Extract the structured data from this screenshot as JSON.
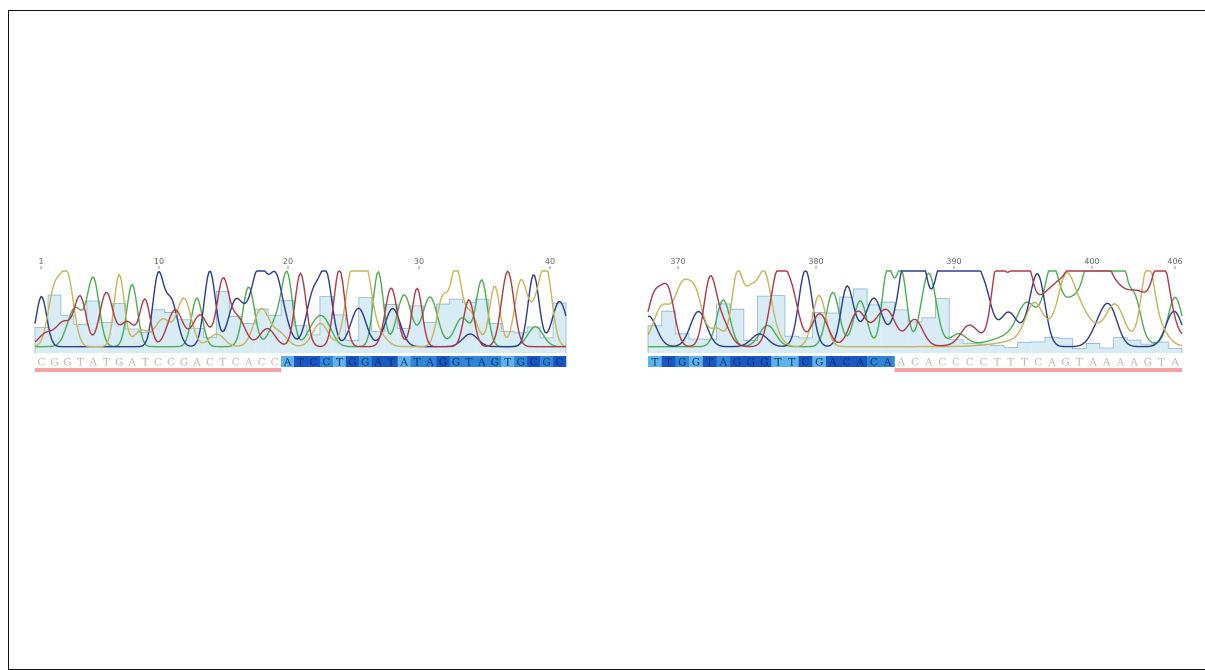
{
  "colors": {
    "A": "#4caf50",
    "C": "#2c3d8f",
    "G": "#c9b458",
    "T": "#b03a48",
    "quality_fill": "#d7ecf5",
    "quality_line": "#8cb6cc",
    "trim_bar": "#f3a3a3",
    "trim_text": "#c8b2b2",
    "highlight_light": "#5eb3ec",
    "highlight_mid": "#2f86d8",
    "highlight_dark": "#1957c4"
  },
  "left_panel": {
    "ticks": [
      "1",
      "10",
      "20",
      "30",
      "40"
    ],
    "sequence": "CGGTATGATCCGACTCACCATCCTGGATATAGGTAGTGCGC",
    "trimmed_prefix_length": 19,
    "trimmed_suffix_length": 0
  },
  "right_panel": {
    "ticks": [
      "370",
      "380",
      "390",
      "400",
      "406"
    ],
    "sequence": "TTGGTAGGGTTCGACACAACACCCCTTTCAGTAAAAGTA",
    "trimmed_prefix_length": 0,
    "trimmed_suffix_length": 21
  }
}
